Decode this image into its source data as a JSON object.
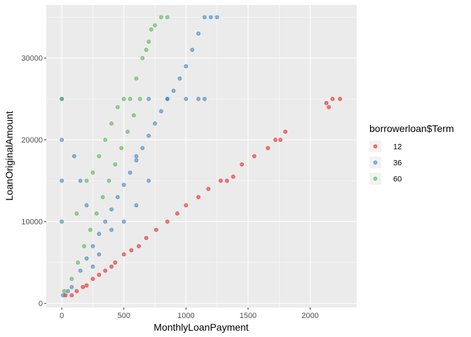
{
  "chart_data": {
    "type": "scatter",
    "xlabel": "MonthlyLoanPayment",
    "ylabel": "LoanOriginalAmount",
    "xlim": [
      -125,
      2375
    ],
    "ylim": [
      -500,
      36500
    ],
    "x_ticks": [
      0,
      500,
      1000,
      1500,
      2000
    ],
    "y_ticks": [
      0,
      10000,
      20000,
      30000
    ],
    "grid": true,
    "legend": {
      "title": "borrowerloan$Term",
      "placement": "right"
    },
    "series": [
      {
        "name": "12",
        "color": "#E41A1C",
        "points": [
          [
            30,
            1000
          ],
          [
            80,
            1000
          ],
          [
            120,
            1500
          ],
          [
            170,
            2000
          ],
          [
            200,
            2200
          ],
          [
            250,
            3000
          ],
          [
            300,
            3500
          ],
          [
            350,
            4000
          ],
          [
            400,
            4500
          ],
          [
            430,
            5000
          ],
          [
            500,
            6000
          ],
          [
            560,
            6500
          ],
          [
            620,
            7000
          ],
          [
            680,
            8000
          ],
          [
            760,
            9000
          ],
          [
            850,
            10000
          ],
          [
            930,
            11000
          ],
          [
            1000,
            12000
          ],
          [
            1100,
            13000
          ],
          [
            1180,
            14000
          ],
          [
            1280,
            15000
          ],
          [
            1330,
            15000
          ],
          [
            1380,
            15500
          ],
          [
            1450,
            17000
          ],
          [
            1550,
            18000
          ],
          [
            1660,
            19000
          ],
          [
            1720,
            20000
          ],
          [
            1760,
            20000
          ],
          [
            1800,
            21000
          ],
          [
            2130,
            24500
          ],
          [
            2150,
            24000
          ],
          [
            2180,
            25000
          ],
          [
            2240,
            25000
          ]
        ]
      },
      {
        "name": "36",
        "color": "#377EB8",
        "points": [
          [
            10,
            1000
          ],
          [
            50,
            1500
          ],
          [
            80,
            2000
          ],
          [
            150,
            4000
          ],
          [
            200,
            5500
          ],
          [
            250,
            7000
          ],
          [
            300,
            8500
          ],
          [
            350,
            10000
          ],
          [
            400,
            11500
          ],
          [
            450,
            13000
          ],
          [
            500,
            14500
          ],
          [
            550,
            16000
          ],
          [
            600,
            17500
          ],
          [
            650,
            19000
          ],
          [
            700,
            20500
          ],
          [
            750,
            22000
          ],
          [
            800,
            23500
          ],
          [
            850,
            25000
          ],
          [
            900,
            26000
          ],
          [
            950,
            27500
          ],
          [
            1000,
            29000
          ],
          [
            1050,
            31000
          ],
          [
            1100,
            33000
          ],
          [
            1150,
            35000
          ],
          [
            1200,
            35000
          ],
          [
            1250,
            35000
          ],
          [
            0,
            25000
          ],
          [
            0,
            20000
          ],
          [
            0,
            15000
          ],
          [
            0,
            10000
          ],
          [
            100,
            18000
          ],
          [
            150,
            15000
          ],
          [
            200,
            12000
          ],
          [
            850,
            25000
          ],
          [
            1000,
            25000
          ],
          [
            1100,
            25000
          ],
          [
            1150,
            25000
          ],
          [
            500,
            10000
          ],
          [
            600,
            12000
          ],
          [
            700,
            15000
          ],
          [
            400,
            9000
          ],
          [
            300,
            6000
          ],
          [
            250,
            4500
          ],
          [
            700,
            25000
          ],
          [
            600,
            18000
          ]
        ]
      },
      {
        "name": "60",
        "color": "#4DAF4A",
        "points": [
          [
            20,
            1500
          ],
          [
            80,
            3000
          ],
          [
            130,
            5000
          ],
          [
            180,
            7000
          ],
          [
            230,
            9000
          ],
          [
            280,
            11000
          ],
          [
            330,
            13000
          ],
          [
            380,
            15000
          ],
          [
            430,
            17000
          ],
          [
            480,
            19000
          ],
          [
            530,
            21000
          ],
          [
            580,
            23000
          ],
          [
            630,
            25000
          ],
          [
            550,
            25000
          ],
          [
            500,
            25000
          ],
          [
            600,
            27500
          ],
          [
            650,
            30000
          ],
          [
            700,
            32000
          ],
          [
            750,
            34000
          ],
          [
            800,
            35000
          ],
          [
            850,
            35000
          ],
          [
            0,
            25000
          ],
          [
            120,
            11000
          ],
          [
            200,
            15000
          ],
          [
            250,
            16000
          ],
          [
            300,
            18000
          ],
          [
            350,
            20000
          ],
          [
            400,
            22000
          ],
          [
            450,
            24000
          ],
          [
            680,
            31000
          ],
          [
            720,
            33500
          ]
        ]
      }
    ]
  }
}
